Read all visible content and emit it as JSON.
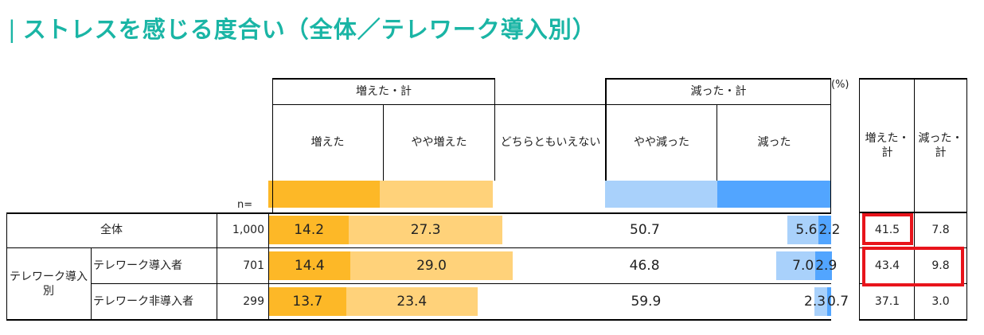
{
  "title": "ストレスを感じる度合い（全体／テレワーク導入別）",
  "title_bar": "|",
  "colors": {
    "title": "#1ab5a5",
    "increased": "#fdb827",
    "somewhat_increased": "#ffd27a",
    "neutral": "#ffffff",
    "somewhat_decreased": "#a9d1fb",
    "decreased": "#52a5ff",
    "highlight_box": "#e8141b"
  },
  "header": {
    "group_increase": "増えた・計",
    "group_decrease": "減った・計",
    "percent_unit": "(%)",
    "categories": [
      "増えた",
      "やや増えた",
      "どちらともいえない",
      "やや減った",
      "減った"
    ],
    "n_label": "n=",
    "side_increase": "増えた・計",
    "side_decrease": "減った・計"
  },
  "rows": [
    {
      "group_label": "",
      "label": "全体",
      "n": "1,000",
      "labels": [
        "14.2",
        "27.3",
        "50.7",
        "5.6",
        "2.2"
      ],
      "inc_total": "41.5",
      "dec_total": "7.8"
    },
    {
      "group_label": "テレワーク導入別",
      "label": "テレワーク導入者",
      "n": "701",
      "labels": [
        "14.4",
        "29.0",
        "46.8",
        "7.0",
        "2.9"
      ],
      "inc_total": "43.4",
      "dec_total": "9.8"
    },
    {
      "group_label": "",
      "label": "テレワーク非導入者",
      "n": "299",
      "labels": [
        "13.7",
        "23.4",
        "59.9",
        "2.3",
        "0.7"
      ],
      "inc_total": "37.1",
      "dec_total": "3.0"
    }
  ],
  "chart_data": {
    "type": "bar",
    "orientation": "horizontal",
    "stacked": true,
    "title": "ストレスを感じる度合い（全体／テレワーク導入別）",
    "unit": "%",
    "categories": [
      "全体",
      "テレワーク導入者",
      "テレワーク非導入者"
    ],
    "n": [
      1000,
      701,
      299
    ],
    "series": [
      {
        "name": "増えた",
        "values": [
          14.2,
          14.4,
          13.7
        ]
      },
      {
        "name": "やや増えた",
        "values": [
          27.3,
          29.0,
          23.4
        ]
      },
      {
        "name": "どちらともいえない",
        "values": [
          50.7,
          46.8,
          59.9
        ]
      },
      {
        "name": "やや減った",
        "values": [
          5.6,
          7.0,
          2.3
        ]
      },
      {
        "name": "減った",
        "values": [
          2.2,
          2.9,
          0.7
        ]
      }
    ],
    "totals": {
      "増えた・計": [
        41.5,
        43.4,
        37.1
      ],
      "減った・計": [
        7.8,
        9.8,
        3.0
      ]
    },
    "highlighted": [
      {
        "row": "全体",
        "column": "増えた・計"
      },
      {
        "row": "テレワーク導入者",
        "column": "増えた・計"
      },
      {
        "row": "テレワーク導入者",
        "column": "減った・計"
      }
    ]
  }
}
